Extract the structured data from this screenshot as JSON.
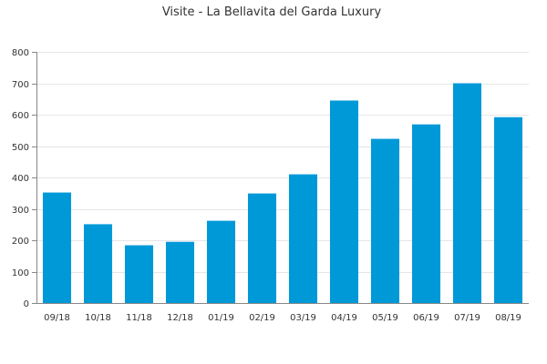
{
  "chart_data": {
    "type": "bar",
    "title": "Visite - La Bellavita del Garda Luxury",
    "xlabel": "",
    "ylabel": "",
    "categories": [
      "09/18",
      "10/18",
      "11/18",
      "12/18",
      "01/19",
      "02/19",
      "03/19",
      "04/19",
      "05/19",
      "06/19",
      "07/19",
      "08/19"
    ],
    "values": [
      352,
      251,
      184,
      195,
      262,
      349,
      410,
      645,
      523,
      569,
      700,
      592
    ],
    "ylim": [
      0,
      800
    ],
    "yticks": [
      0,
      100,
      200,
      300,
      400,
      500,
      600,
      700,
      800
    ],
    "grid": true,
    "legend": "none",
    "bar_color": "#0099d8",
    "grid_color": "#e6e6e6",
    "axis_color": "#888888"
  }
}
